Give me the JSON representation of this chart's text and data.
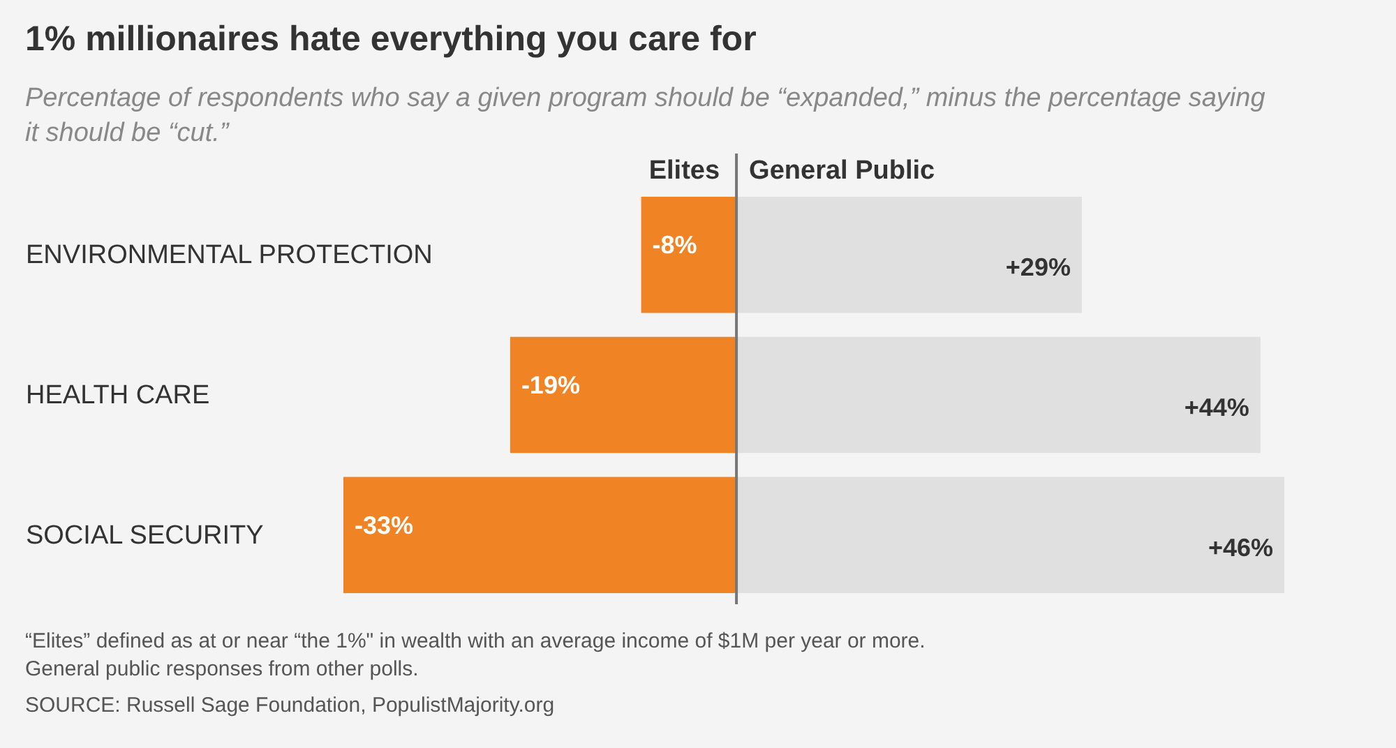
{
  "chart_data": {
    "type": "bar",
    "orientation": "horizontal",
    "stacked": true,
    "title": "1% millionaires hate everything you care for",
    "subtitle": "Percentage of respondents who say a given program should be “expanded,” minus the percentage saying it should be “cut.”",
    "categories": [
      "ENVIRONMENTAL PROTECTION",
      "HEALTH CARE",
      "SOCIAL SECURITY"
    ],
    "series": [
      {
        "name": "Elites",
        "color": "#f08424",
        "values": [
          -8,
          -19,
          -33
        ],
        "value_labels": [
          "-8%",
          "-19%",
          "-33%"
        ]
      },
      {
        "name": "General Public",
        "color": "#e0e0e0",
        "values": [
          29,
          44,
          46
        ],
        "value_labels": [
          "+29%",
          "+44%",
          "+46%"
        ]
      }
    ],
    "xlim": [
      -33,
      46
    ],
    "tick_labels": "y",
    "annotations": [
      "“Elites” defined as at or near “the 1%\" in wealth with an average income of $1M per year or more.",
      "General public responses from other polls.",
      "SOURCE: Russell Sage Foundation, PopulistMajority.org"
    ]
  }
}
